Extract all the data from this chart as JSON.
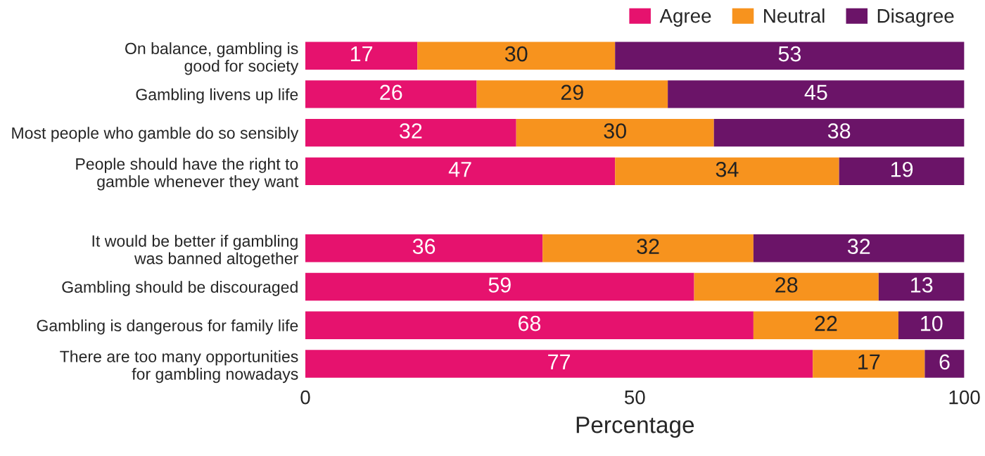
{
  "chart_data": {
    "type": "bar",
    "orientation": "horizontal",
    "stacked": true,
    "data_labels": true,
    "xlabel": "Percentage",
    "categories": [
      "On balance, gambling is\ngood for society",
      "Gambling livens up life",
      "Most people who gamble do so sensibly",
      "People should have the right to\ngamble whenever they want",
      null,
      "It would be better if gambling\nwas banned altogether",
      "Gambling should be discouraged",
      "Gambling is dangerous for family life",
      "There are too many opportunities\nfor gambling nowadays"
    ],
    "series": [
      {
        "name": "Agree",
        "color": "#e6126e",
        "values": [
          17,
          26,
          32,
          47,
          null,
          36,
          59,
          68,
          77
        ]
      },
      {
        "name": "Neutral",
        "color": "#f7931e",
        "values": [
          30,
          29,
          30,
          34,
          null,
          32,
          28,
          22,
          17
        ]
      },
      {
        "name": "Disagree",
        "color": "#6b1468",
        "values": [
          53,
          45,
          38,
          19,
          null,
          32,
          13,
          10,
          6
        ]
      }
    ],
    "xlim": [
      0,
      100
    ],
    "xticks": [
      0,
      50,
      100
    ],
    "grid": false,
    "legend": "top right"
  }
}
